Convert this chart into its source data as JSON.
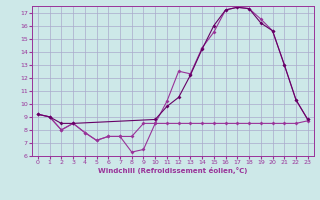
{
  "xlabel": "Windchill (Refroidissement éolien,°C)",
  "bg_color": "#cde8e8",
  "grid_color": "#aaaacc",
  "line_color": "#993399",
  "line2_color": "#660066",
  "xlim": [
    -0.5,
    23.5
  ],
  "ylim": [
    6,
    17.5
  ],
  "yticks": [
    6,
    7,
    8,
    9,
    10,
    11,
    12,
    13,
    14,
    15,
    16,
    17
  ],
  "xticks": [
    0,
    1,
    2,
    3,
    4,
    5,
    6,
    7,
    8,
    9,
    10,
    11,
    12,
    13,
    14,
    15,
    16,
    17,
    18,
    19,
    20,
    21,
    22,
    23
  ],
  "line1_x": [
    0,
    1,
    2,
    3,
    4,
    5,
    6,
    7,
    8,
    9,
    10,
    11,
    12,
    13,
    14,
    15,
    16,
    17,
    18,
    19,
    20,
    21,
    22,
    23
  ],
  "line1_y": [
    9.2,
    9.0,
    8.0,
    8.5,
    7.8,
    7.2,
    7.5,
    7.5,
    7.5,
    8.5,
    8.5,
    8.5,
    8.5,
    8.5,
    8.5,
    8.5,
    8.5,
    8.5,
    8.5,
    8.5,
    8.5,
    8.5,
    8.5,
    8.7
  ],
  "line2_x": [
    0,
    1,
    2,
    3,
    4,
    5,
    6,
    7,
    8,
    9,
    10,
    11,
    12,
    13,
    14,
    15,
    16,
    17,
    18,
    19,
    20,
    21,
    22,
    23
  ],
  "line2_y": [
    9.2,
    9.0,
    8.0,
    8.5,
    7.8,
    7.2,
    7.5,
    7.5,
    6.3,
    6.5,
    8.5,
    10.2,
    12.5,
    12.3,
    14.3,
    15.5,
    17.2,
    17.4,
    17.3,
    16.5,
    15.6,
    13.0,
    10.3,
    8.8
  ],
  "line3_x": [
    0,
    1,
    2,
    3,
    10,
    11,
    12,
    13,
    14,
    15,
    16,
    17,
    18,
    19,
    20,
    21,
    22,
    23
  ],
  "line3_y": [
    9.2,
    9.0,
    8.5,
    8.5,
    8.8,
    9.8,
    10.5,
    12.2,
    14.2,
    16.0,
    17.2,
    17.4,
    17.3,
    16.2,
    15.6,
    13.0,
    10.3,
    8.8
  ],
  "marker": "D",
  "markersize": 2.0,
  "linewidth": 0.8
}
